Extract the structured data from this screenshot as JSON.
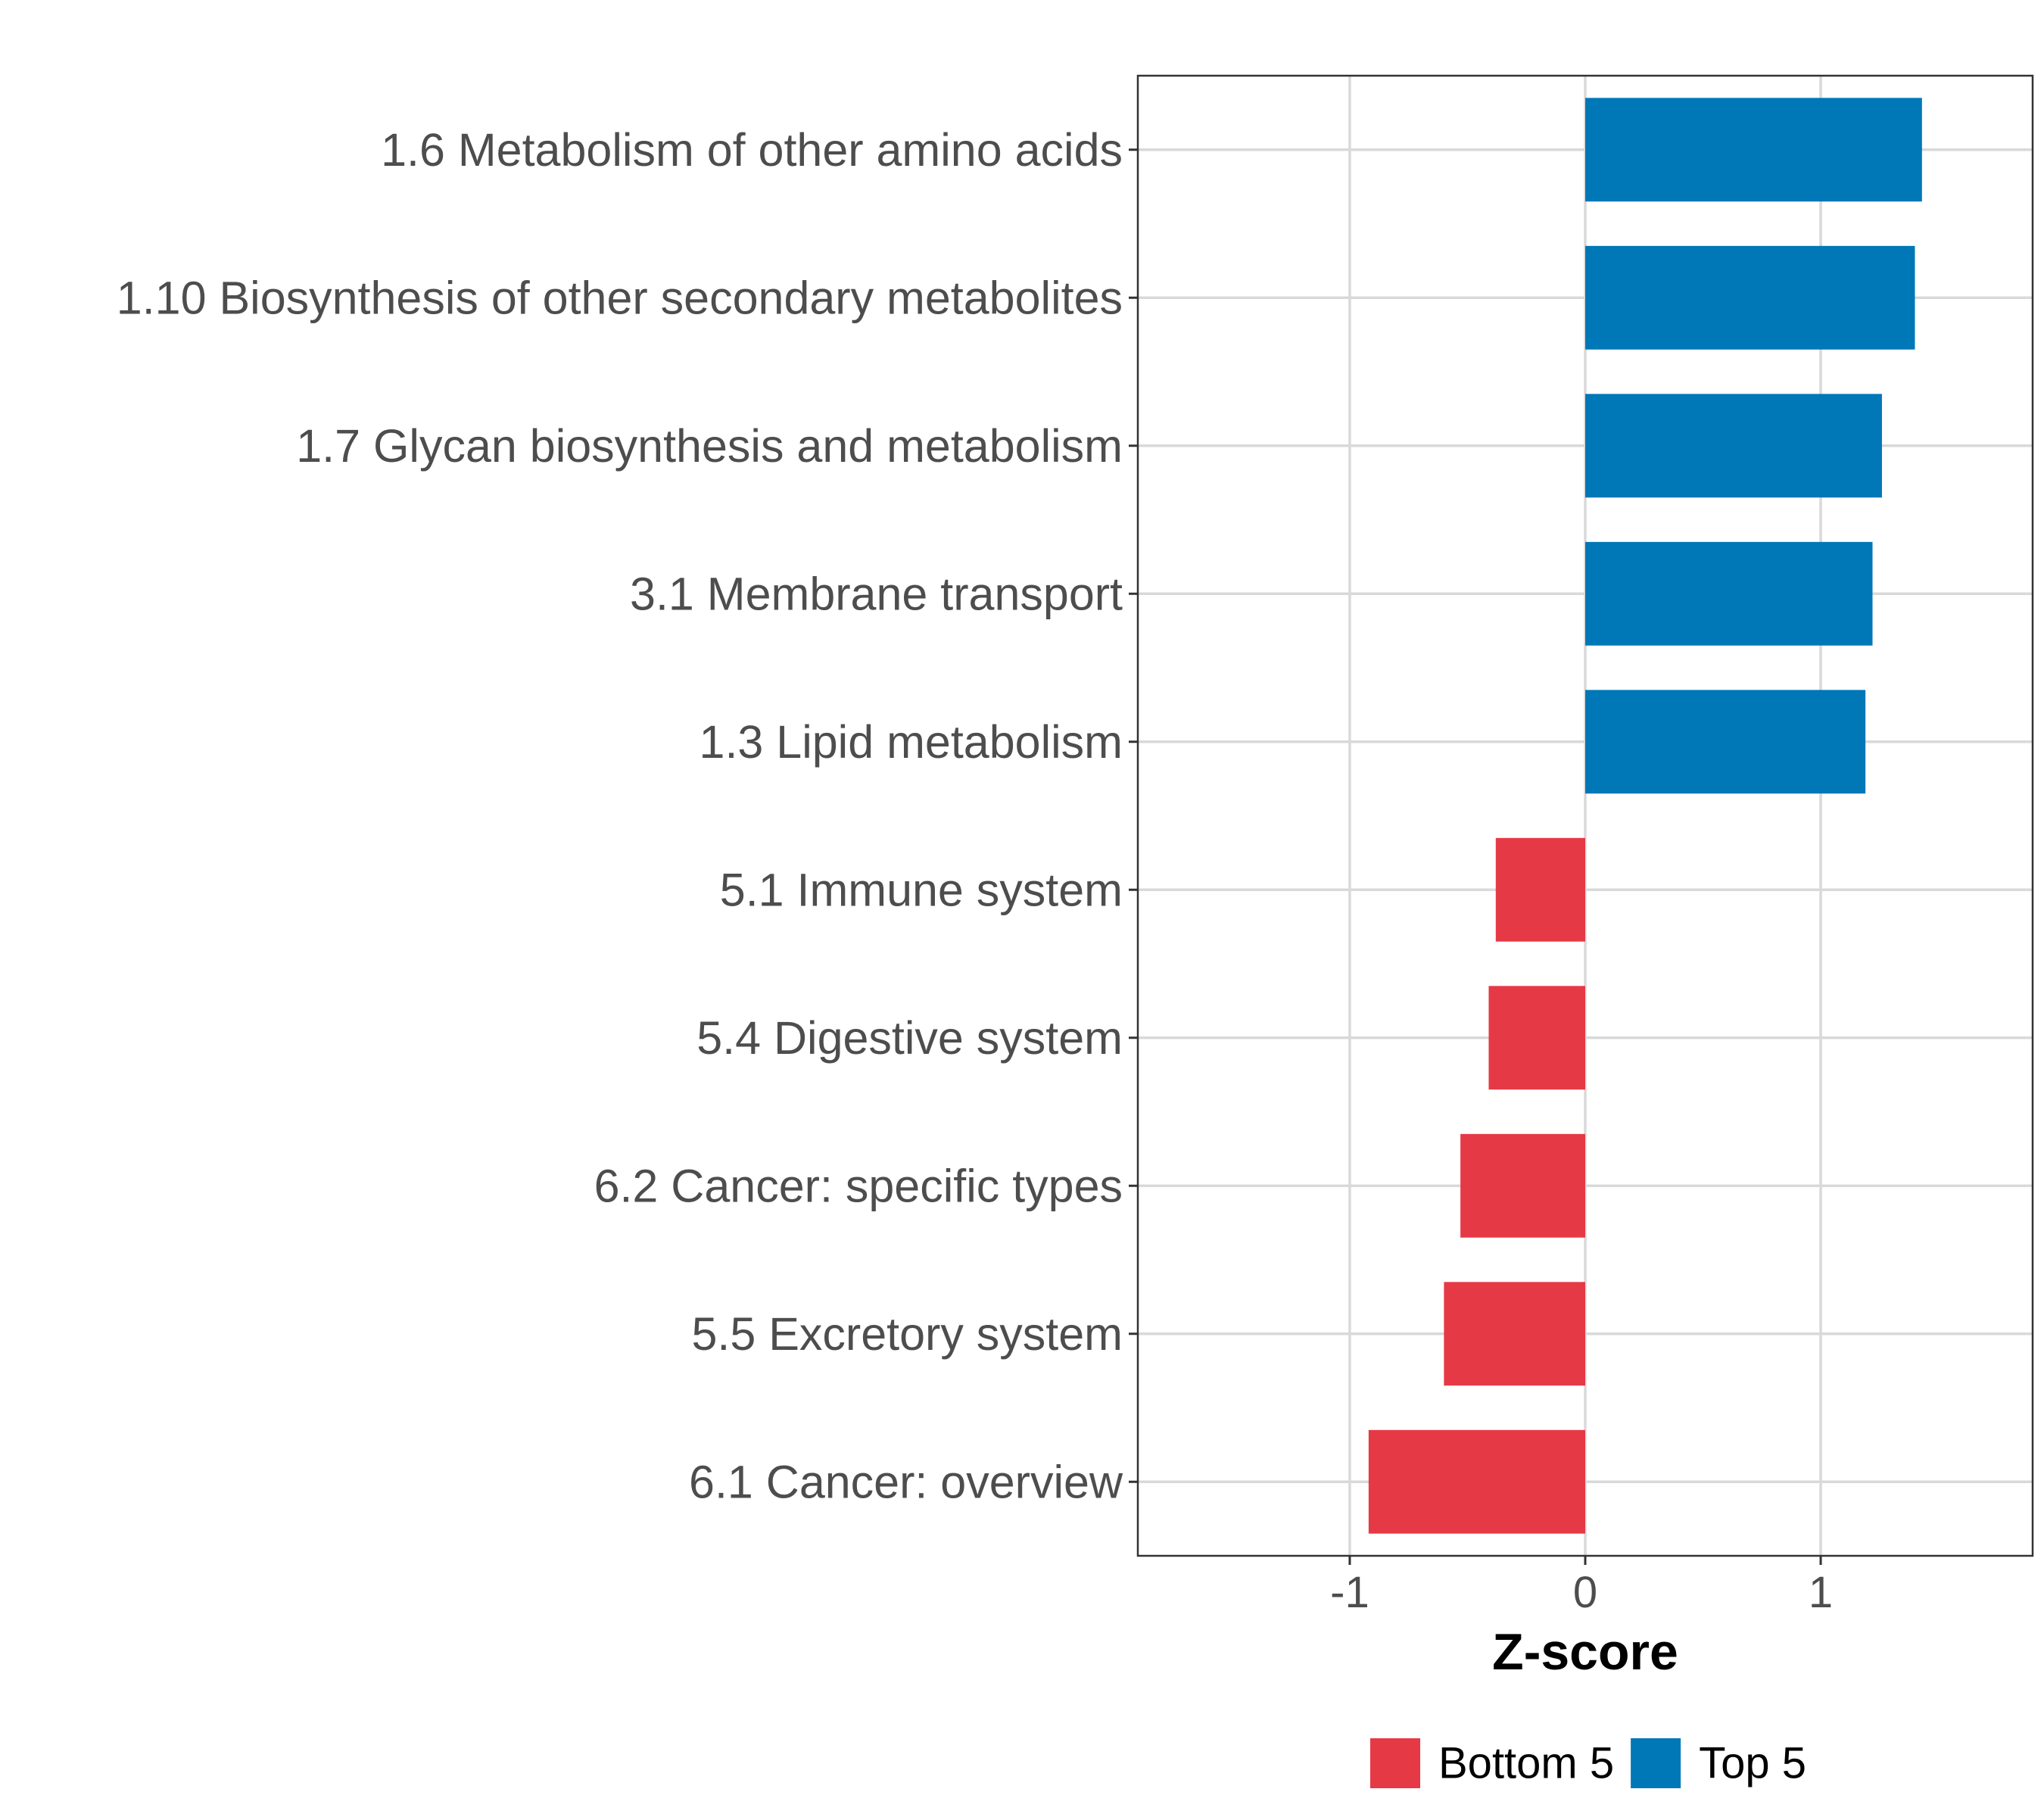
{
  "chart_data": {
    "type": "bar",
    "orientation": "horizontal",
    "title": "",
    "xlabel": "Z-score",
    "ylabel": "",
    "xlim": [
      -1.9,
      1.9
    ],
    "xticks": [
      -1,
      0,
      1
    ],
    "xtick_labels": [
      "-1",
      "0",
      "1"
    ],
    "grid": true,
    "legend_position": "bottom",
    "categories": [
      "1.6 Metabolism of other amino acids",
      "1.10 Biosynthesis of other secondary metabolites",
      "1.7 Glycan biosynthesis and metabolism",
      "3.1 Membrane transport",
      "1.3 Lipid metabolism",
      "5.1 Immune system",
      "5.4 Digestive system",
      "6.2 Cancer: specific types",
      "5.5 Excretory system",
      "6.1 Cancer: overview"
    ],
    "values": [
      1.43,
      1.4,
      1.26,
      1.22,
      1.19,
      -0.38,
      -0.41,
      -0.53,
      -0.6,
      -0.92
    ],
    "groups": [
      "Top 5",
      "Top 5",
      "Top 5",
      "Top 5",
      "Top 5",
      "Bottom 5",
      "Bottom 5",
      "Bottom 5",
      "Bottom 5",
      "Bottom 5"
    ],
    "legend": [
      {
        "name": "Bottom 5",
        "color": "#e63946"
      },
      {
        "name": "Top 5",
        "color": "#0077b6"
      }
    ]
  }
}
